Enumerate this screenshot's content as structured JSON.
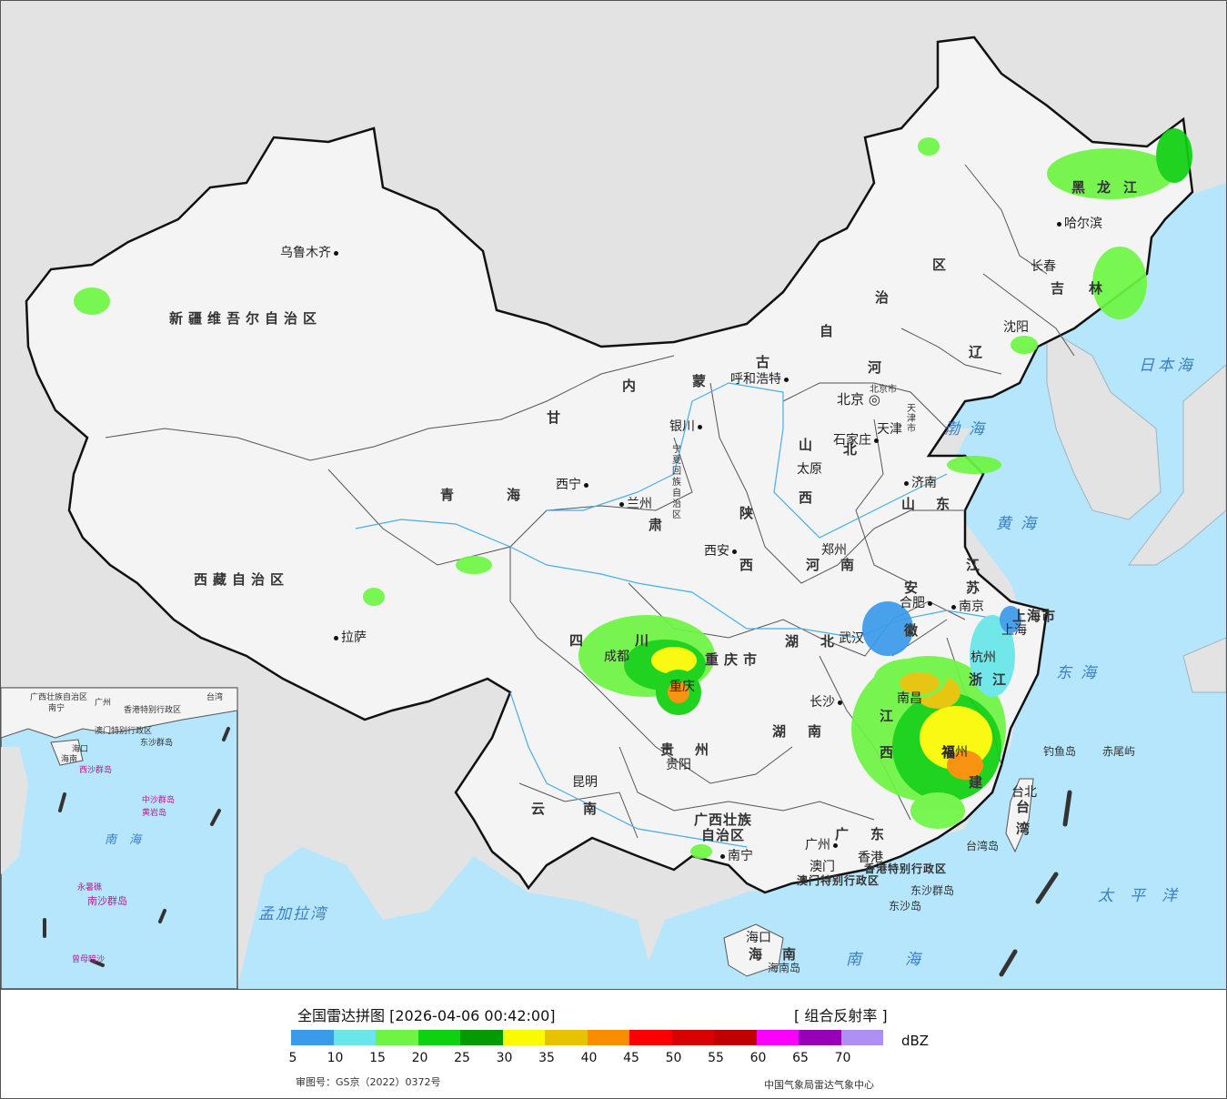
{
  "legend": {
    "title": "全国雷达拼图 [2026-04-06 00:42:00]",
    "type": "[ 组合反射率 ]",
    "unit": "dBZ",
    "review_no": "审图号：GS京（2022）0372号",
    "source": "中国气象局雷达气象中心",
    "colors": [
      "#3a9bea",
      "#68e6ea",
      "#6df542",
      "#0fd10f",
      "#039a03",
      "#fafa00",
      "#e6c200",
      "#fa8c00",
      "#fa0000",
      "#d80000",
      "#c00000",
      "#fa00fa",
      "#9800b8",
      "#ae8ff2"
    ],
    "ticks": [
      "5",
      "10",
      "15",
      "20",
      "25",
      "30",
      "35",
      "40",
      "45",
      "50",
      "55",
      "60",
      "65",
      "70"
    ]
  },
  "provinces": {
    "xinjiang": "新疆维吾尔自治区",
    "xizang": "西藏自治区",
    "qinghai1": "青",
    "qinghai2": "海",
    "gansu1": "甘",
    "gansu2": "肃",
    "neimenggu": [
      "内",
      "蒙",
      "古",
      "自",
      "治",
      "区"
    ],
    "heilongjiang": [
      "黑",
      "龙",
      "江"
    ],
    "jilin": [
      "吉",
      "林"
    ],
    "liaoning": "辽",
    "hebei1": "河",
    "hebei2": "北",
    "shanxi1": "山",
    "shanxi2": "西",
    "shaanxi1": "陕",
    "shaanxi2": "西",
    "henan1": "河",
    "henan2": "南",
    "shandong1": "山",
    "shandong2": "东",
    "jiangsu1": "江",
    "jiangsu2": "苏",
    "anhui1": "安",
    "anhui2": "徽",
    "hubei1": "湖",
    "hubei2": "北",
    "hunan1": "湖",
    "hunan2": "南",
    "jiangxi1": "江",
    "jiangxi2": "西",
    "zhejiang1": "浙",
    "zhejiang2": "江",
    "fujian1": "福",
    "fujian2": "建",
    "sichuan1": "四",
    "sichuan2": "川",
    "chongqing": "重庆市",
    "guizhou1": "贵",
    "guizhou2": "州",
    "yunnan1": "云",
    "yunnan2": "南",
    "guangxi1": "广西壮族",
    "guangxi2": "自治区",
    "guangdong1": "广",
    "guangdong2": "东",
    "hainan1": "海",
    "hainan2": "南",
    "taiwan1": "台",
    "taiwan2": "湾",
    "shanghai": "上海市",
    "ningxia": "宁夏回族自治区",
    "beijing": "北京市",
    "tianjin": "天津市",
    "xianggang": "香港特别行政区",
    "aomen": "澳门特别行政区"
  },
  "cities": [
    "乌鲁木齐",
    "拉萨",
    "西宁",
    "兰州",
    "银川",
    "呼和浩特",
    "北京",
    "天津",
    "石家庄",
    "太原",
    "济南",
    "郑州",
    "西安",
    "成都",
    "重庆",
    "贵阳",
    "昆明",
    "南宁",
    "广州",
    "香港",
    "澳门",
    "海口",
    "长沙",
    "武汉",
    "南昌",
    "合肥",
    "南京",
    "上海",
    "杭州",
    "福州",
    "台北",
    "沈阳",
    "长春",
    "哈尔滨"
  ],
  "seas": {
    "japan_sea": "日本海",
    "bohai": "渤海",
    "yellow_sea": "黄海",
    "east_sea": "东海",
    "pacific": "太平洋",
    "south_sea": "南海",
    "bengal": "孟加拉湾"
  },
  "islands": {
    "diaoyu": "钓鱼岛",
    "chiwei": "赤尾屿",
    "dongsha_islands": "东沙群岛",
    "dongsha_island": "东沙岛",
    "taiwan_island": "台湾岛",
    "hainan_island": "海南岛"
  },
  "inset": {
    "labels": [
      "广西壮族自治区",
      "南宁",
      "广州",
      "香港特别行政区",
      "澳门特别行政区",
      "台湾",
      "海口",
      "海南",
      "东沙群岛",
      "西沙群岛",
      "中沙群岛",
      "黄岩岛",
      "南海",
      "永暑礁",
      "南沙群岛",
      "曾母暗沙"
    ]
  }
}
